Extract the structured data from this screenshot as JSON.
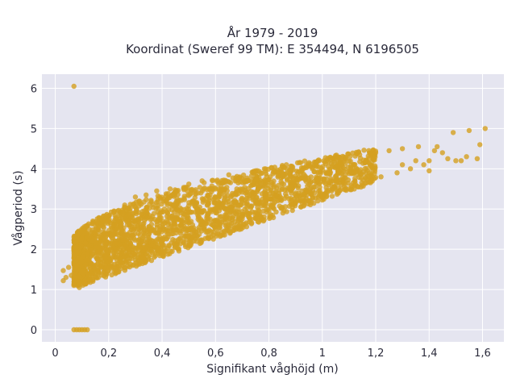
{
  "chart_data": {
    "type": "scatter",
    "title_line1": "År 1979 - 2019",
    "title_line2": "Koordinat (Sweref 99 TM): E 354494, N 6196505",
    "xlabel": "Signifikant våghöjd (m)",
    "ylabel": "Vågperiod (s)",
    "xlim": [
      -0.05,
      1.68
    ],
    "ylim": [
      -0.3,
      6.35
    ],
    "xticks": [
      0,
      0.2,
      0.4,
      0.6,
      0.8,
      1,
      1.2,
      1.4,
      1.6
    ],
    "xtick_labels": [
      "0",
      "0,2",
      "0,4",
      "0,6",
      "0,8",
      "1",
      "1,2",
      "1,4",
      "1,6"
    ],
    "yticks": [
      0,
      1,
      2,
      3,
      4,
      5,
      6
    ],
    "ytick_labels": [
      "0",
      "1",
      "2",
      "3",
      "4",
      "5",
      "6"
    ],
    "grid": true,
    "colors": {
      "marker": "#D4A020",
      "plot_bg": "#E5E5F0",
      "grid": "#ffffff"
    },
    "series": [
      {
        "points": [
          [
            0.07,
            6.05
          ],
          [
            0.07,
            0.0
          ],
          [
            0.08,
            0.0
          ],
          [
            0.09,
            0.0
          ],
          [
            0.1,
            0.0
          ],
          [
            0.11,
            0.0
          ],
          [
            0.12,
            0.0
          ],
          [
            0.03,
            1.22
          ],
          [
            0.04,
            1.3
          ],
          [
            0.03,
            1.47
          ],
          [
            0.05,
            1.55
          ],
          [
            0.06,
            1.35
          ],
          [
            0.07,
            1.1
          ],
          [
            0.08,
            1.6
          ],
          [
            0.09,
            1.05
          ],
          [
            0.1,
            1.7
          ],
          [
            0.11,
            1.15
          ],
          [
            0.12,
            1.9
          ],
          [
            0.13,
            1.25
          ],
          [
            0.14,
            2.2
          ],
          [
            0.15,
            1.4
          ],
          [
            0.16,
            2.5
          ],
          [
            0.17,
            1.55
          ],
          [
            0.18,
            2.7
          ],
          [
            0.2,
            1.7
          ],
          [
            0.22,
            2.95
          ],
          [
            0.24,
            1.85
          ],
          [
            0.26,
            3.1
          ],
          [
            0.28,
            1.95
          ],
          [
            0.3,
            3.3
          ],
          [
            0.32,
            2.05
          ],
          [
            0.34,
            3.35
          ],
          [
            0.36,
            2.1
          ],
          [
            0.38,
            3.45
          ],
          [
            0.4,
            2.2
          ],
          [
            0.43,
            3.5
          ],
          [
            0.46,
            2.2
          ],
          [
            0.48,
            2.2
          ],
          [
            0.5,
            3.62
          ],
          [
            0.53,
            2.3
          ],
          [
            0.55,
            3.7
          ],
          [
            0.6,
            2.55
          ],
          [
            0.65,
            3.85
          ],
          [
            0.7,
            2.75
          ],
          [
            0.75,
            3.95
          ],
          [
            0.8,
            2.95
          ],
          [
            0.85,
            4.05
          ],
          [
            0.9,
            3.15
          ],
          [
            0.95,
            4.15
          ],
          [
            1.0,
            3.35
          ],
          [
            1.05,
            4.25
          ],
          [
            1.1,
            3.5
          ],
          [
            1.14,
            4.35
          ],
          [
            1.18,
            3.7
          ],
          [
            1.2,
            4.4
          ],
          [
            1.22,
            3.8
          ],
          [
            1.25,
            4.45
          ],
          [
            1.28,
            3.9
          ],
          [
            1.3,
            4.5
          ],
          [
            1.33,
            4.0
          ],
          [
            1.36,
            4.55
          ],
          [
            1.38,
            4.1
          ],
          [
            1.4,
            4.2
          ],
          [
            1.42,
            4.45
          ],
          [
            1.43,
            4.55
          ],
          [
            1.45,
            4.4
          ],
          [
            1.47,
            4.25
          ],
          [
            1.49,
            4.9
          ],
          [
            1.5,
            4.2
          ],
          [
            1.52,
            4.2
          ],
          [
            1.54,
            4.3
          ],
          [
            1.55,
            4.95
          ],
          [
            1.58,
            4.25
          ],
          [
            1.59,
            4.6
          ],
          [
            1.61,
            5.0
          ],
          [
            1.4,
            3.95
          ],
          [
            1.35,
            4.2
          ],
          [
            1.3,
            4.1
          ]
        ]
      }
    ]
  }
}
